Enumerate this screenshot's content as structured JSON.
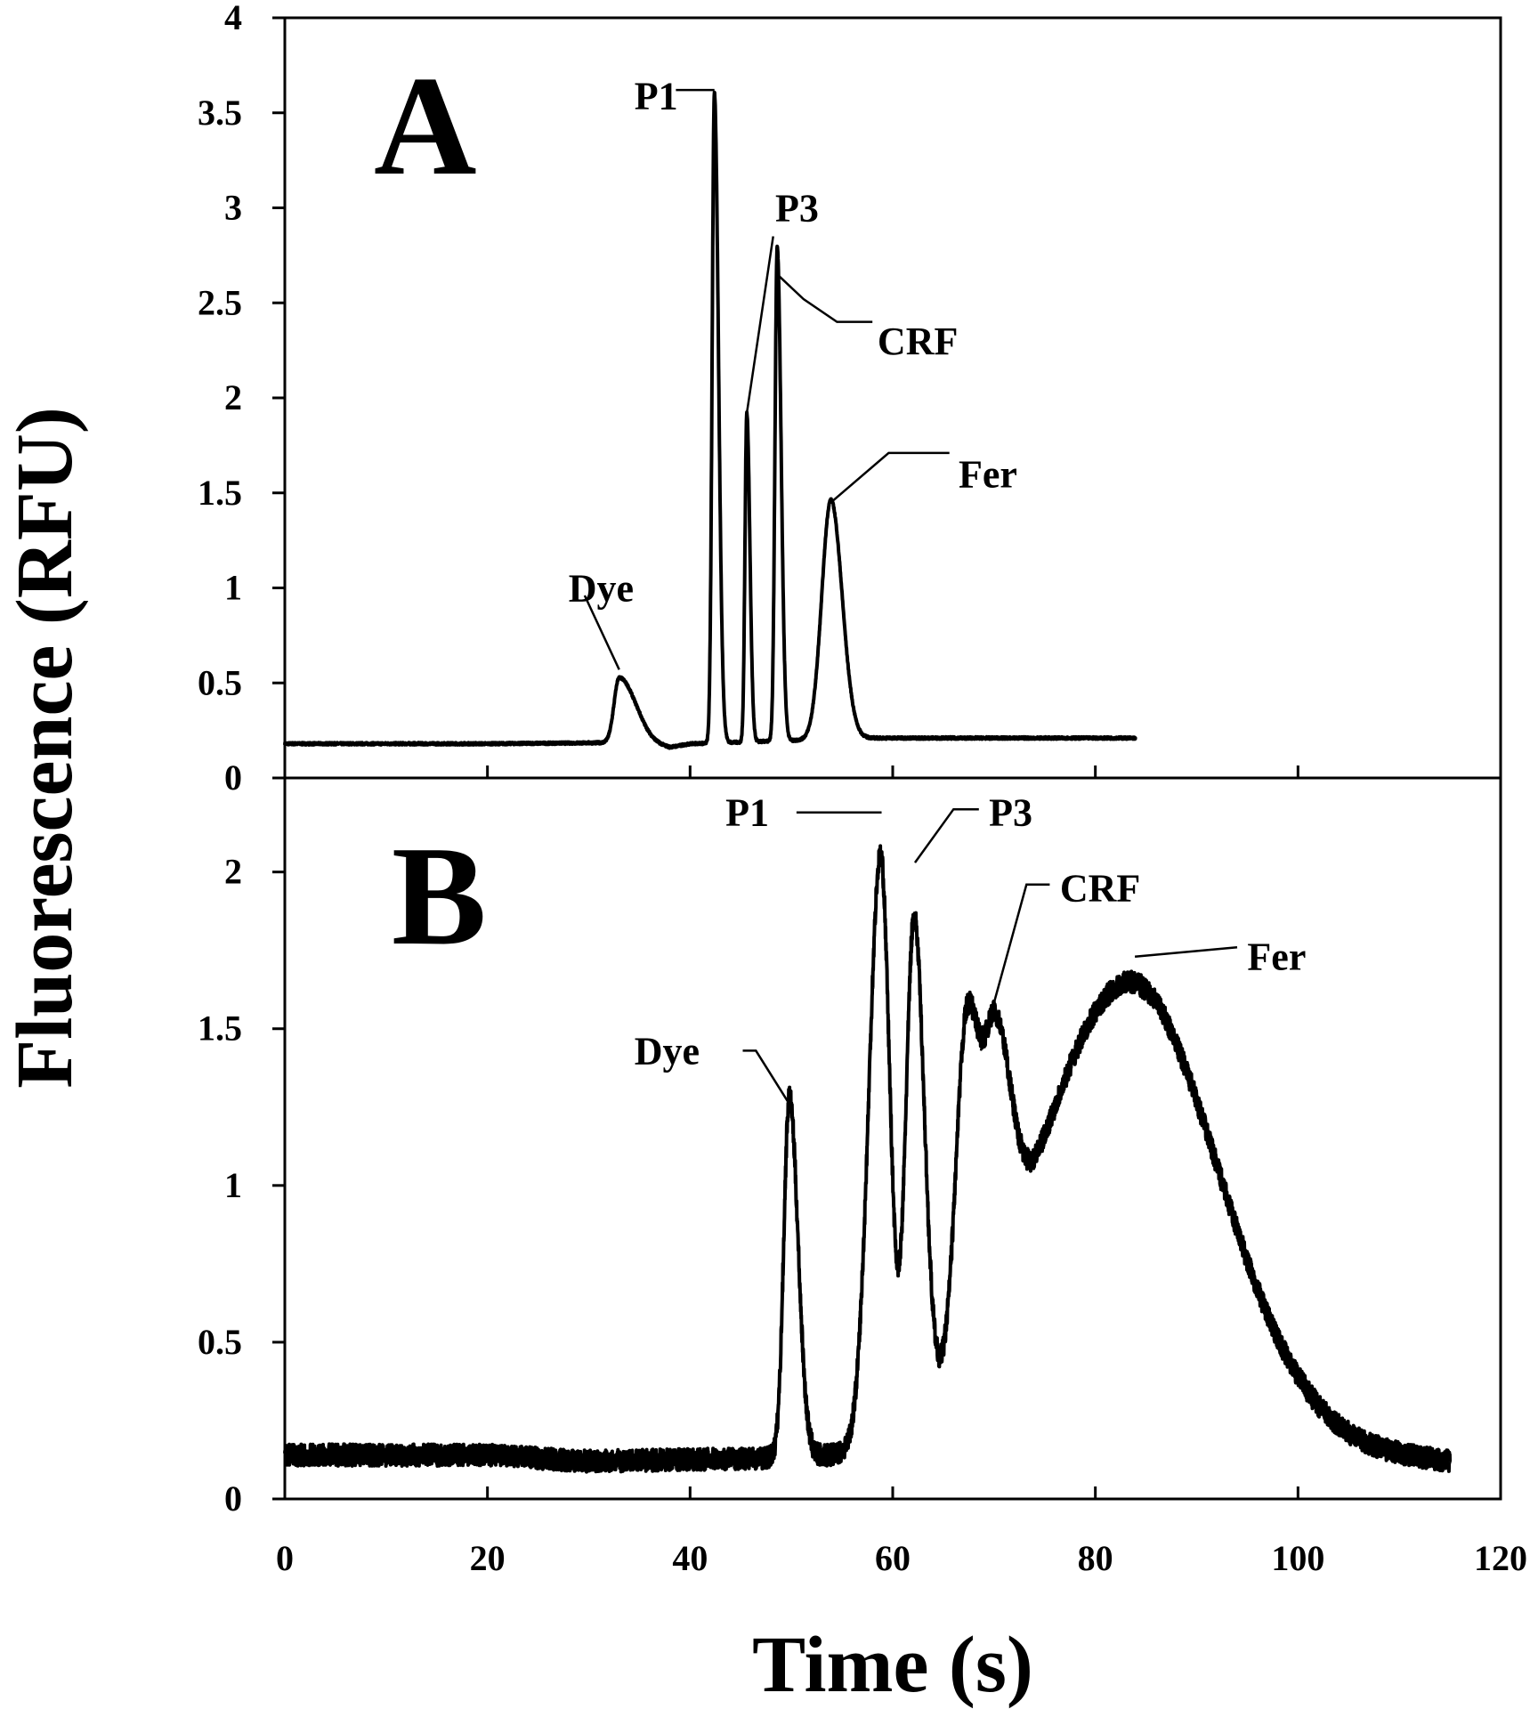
{
  "figure": {
    "ylabel": "Fluorescence (RFU)",
    "xlabel": "Time (s)",
    "x_ticks": [
      "0",
      "20",
      "40",
      "60",
      "80",
      "100",
      "120"
    ]
  },
  "chart_data": [
    {
      "type": "line",
      "panel_label": "A",
      "xlim": [
        0,
        120
      ],
      "ylim": [
        0,
        4
      ],
      "xlabel": "Time (s)",
      "ylabel": "Fluorescence (RFU)",
      "y_ticks": [
        "0",
        "0.5",
        "1",
        "1.5",
        "2",
        "2.5",
        "3",
        "3.5",
        "4"
      ],
      "grid": false,
      "noise": 0.006,
      "baseline": [
        [
          0,
          0.18
        ],
        [
          20,
          0.18
        ],
        [
          31,
          0.185
        ],
        [
          35,
          0.19
        ],
        [
          38,
          0.16
        ],
        [
          40,
          0.18
        ],
        [
          58,
          0.21
        ],
        [
          84,
          0.21
        ]
      ],
      "x_range": [
        0,
        84
      ],
      "peaks": [
        {
          "center": 33,
          "height": 0.34,
          "sigma_left": 0.5,
          "sigma_right": 1.6
        },
        {
          "center": 42.4,
          "height": 3.42,
          "sigma_left": 0.22,
          "sigma_right": 0.4
        },
        {
          "center": 45.6,
          "height": 1.73,
          "sigma_left": 0.18,
          "sigma_right": 0.3
        },
        {
          "center": 48.6,
          "height": 2.6,
          "sigma_left": 0.22,
          "sigma_right": 0.38
        },
        {
          "center": 53.9,
          "height": 1.26,
          "sigma_left": 0.9,
          "sigma_right": 1.1
        }
      ],
      "peak_labels": [
        {
          "text": "Dye",
          "x": 33,
          "y": 0.57,
          "label_x": 28,
          "label_y": 1.0,
          "leader": [
            [
              33,
              0.57
            ],
            [
              29.6,
              0.96
            ]
          ]
        },
        {
          "text": "P1",
          "x": 42.4,
          "y": 3.62,
          "label_x": 34.5,
          "label_y": 3.59,
          "leader": [
            [
              42.4,
              3.62
            ],
            [
              38.6,
              3.62
            ]
          ]
        },
        {
          "text": "P3",
          "x": 45.6,
          "y": 1.92,
          "label_x": 48.4,
          "label_y": 3.0,
          "leader": [
            [
              45.6,
              1.92
            ],
            [
              48.2,
              2.85
            ]
          ]
        },
        {
          "text": "CRF",
          "x": 48.6,
          "y": 2.65,
          "label_x": 58.5,
          "label_y": 2.3,
          "leader": [
            [
              48.6,
              2.65
            ],
            [
              51.2,
              2.52
            ],
            [
              54.5,
              2.4
            ],
            [
              58.0,
              2.4
            ]
          ]
        },
        {
          "text": "Fer",
          "x": 53.9,
          "y": 1.45,
          "label_x": 66.5,
          "label_y": 1.6,
          "leader": [
            [
              53.9,
              1.45
            ],
            [
              59.6,
              1.71
            ],
            [
              65.6,
              1.71
            ]
          ]
        }
      ]
    },
    {
      "type": "line",
      "panel_label": "B",
      "xlim": [
        0,
        120
      ],
      "ylim": [
        0,
        2.3
      ],
      "xlabel": "Time (s)",
      "ylabel": "Fluorescence (RFU)",
      "y_ticks": [
        "0",
        "0.5",
        "1",
        "1.5",
        "2"
      ],
      "grid": false,
      "noise": 0.035,
      "baseline": [
        [
          0,
          0.14
        ],
        [
          20,
          0.14
        ],
        [
          30,
          0.12
        ],
        [
          47,
          0.13
        ],
        [
          55,
          0.13
        ],
        [
          100,
          0.16
        ],
        [
          108,
          0.14
        ],
        [
          115,
          0.12
        ]
      ],
      "x_range": [
        0,
        115
      ],
      "peaks": [
        {
          "center": 49.8,
          "height": 1.15,
          "sigma_left": 0.55,
          "sigma_right": 0.85
        },
        {
          "center": 58.8,
          "height": 1.87,
          "sigma_left": 1.15,
          "sigma_right": 0.9
        },
        {
          "center": 62.1,
          "height": 1.6,
          "sigma_left": 0.8,
          "sigma_right": 1.0
        },
        {
          "center": 67.3,
          "height": 1.05,
          "sigma_left": 1.05,
          "sigma_right": 1.3
        },
        {
          "center": 70.2,
          "height": 0.75,
          "sigma_left": 1.1,
          "sigma_right": 1.5
        },
        {
          "center": 83.4,
          "height": 1.5,
          "sigma_left": 9.5,
          "sigma_right": 8.6
        }
      ],
      "peak_labels": [
        {
          "text": "Dye",
          "x": 49.8,
          "y": 1.26,
          "label_x": 34.5,
          "label_y": 1.43,
          "leader": [
            [
              49.8,
              1.26
            ],
            [
              46.5,
              1.43
            ],
            [
              45.2,
              1.43
            ]
          ]
        },
        {
          "text": "P1",
          "x": 58.9,
          "y": 2.19,
          "label_x": 43.5,
          "label_y": 2.19,
          "leader": [
            [
              58.9,
              2.19
            ],
            [
              50.5,
              2.19
            ]
          ]
        },
        {
          "text": "P3",
          "x": 62.2,
          "y": 2.03,
          "label_x": 69.5,
          "label_y": 2.19,
          "leader": [
            [
              62.2,
              2.03
            ],
            [
              66.0,
              2.2
            ],
            [
              68.5,
              2.2
            ]
          ]
        },
        {
          "text": "CRF",
          "x": 68.7,
          "y": 1.43,
          "label_x": 76.5,
          "label_y": 1.95,
          "leader": [
            [
              68.7,
              1.43
            ],
            [
              73.2,
              1.96
            ],
            [
              75.5,
              1.96
            ]
          ]
        },
        {
          "text": "Fer",
          "x": 83.9,
          "y": 1.73,
          "label_x": 95.0,
          "label_y": 1.73,
          "leader": [
            [
              83.9,
              1.73
            ],
            [
              94.0,
              1.76
            ]
          ]
        }
      ]
    }
  ]
}
